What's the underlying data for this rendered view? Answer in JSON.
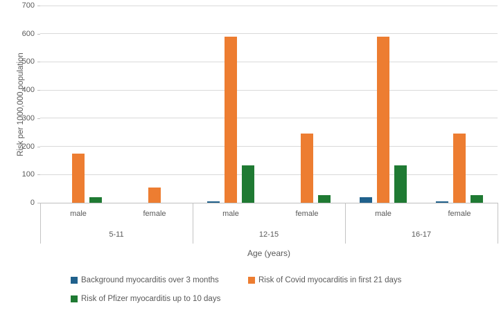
{
  "chart_data": {
    "type": "bar",
    "title": "",
    "ylabel": "Risk per 1000,000 population",
    "xlabel": "Age (years)",
    "ylim": [
      0,
      700
    ],
    "ytick_interval": 100,
    "yticks": [
      0,
      100,
      200,
      300,
      400,
      500,
      600,
      700
    ],
    "grid": true,
    "legend_position": "bottom",
    "group_labels": [
      "5-11",
      "12-15",
      "16-17"
    ],
    "sub_labels": [
      "male",
      "female"
    ],
    "categories": [
      "5-11 male",
      "5-11 female",
      "12-15 male",
      "12-15 female",
      "16-17 male",
      "16-17 female"
    ],
    "series": [
      {
        "name": "Background myocarditis over 3 months",
        "color": "#20618C",
        "values": [
          0,
          0,
          5,
          0,
          20,
          4
        ]
      },
      {
        "name": "Risk of Covid myocarditis in first 21 days",
        "color": "#ED7D31",
        "values": [
          175,
          55,
          590,
          246,
          590,
          246
        ]
      },
      {
        "name": "Risk of Pfizer myocarditis up to 10 days",
        "color": "#1F7A33",
        "values": [
          20,
          0,
          133,
          28,
          133,
          28
        ]
      }
    ],
    "colors": {
      "grid": "#D9D9D9",
      "axis_line": "#BFBFBF",
      "text": "#595959"
    }
  }
}
